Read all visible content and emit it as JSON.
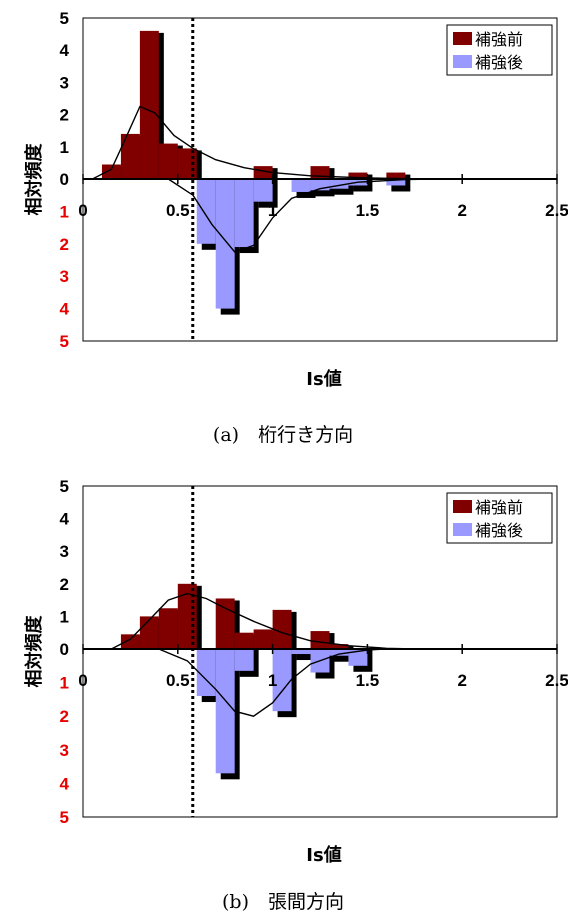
{
  "chart_data": [
    {
      "type": "bar",
      "caption": "(a)　桁行き方向",
      "xlabel": "Is値",
      "ylabel": "相対頻度",
      "xlim": [
        0,
        2.5
      ],
      "ylim": [
        -5,
        5
      ],
      "xticks": [
        "0",
        "0.5",
        "1",
        "1.5",
        "2",
        "2.5"
      ],
      "yticks_pos": [
        "5",
        "4",
        "3",
        "2",
        "1",
        "0"
      ],
      "yticks_neg": [
        "1",
        "2",
        "3",
        "4",
        "5"
      ],
      "bin_width": 0.1,
      "reference_line_x": 0.6,
      "legend_position": "top-right",
      "colors": {
        "before": "#800000",
        "after": "#9999ff",
        "shadow": "#000000"
      },
      "series": [
        {
          "name": "補強前",
          "direction": "up",
          "bins": [
            [
              0.1,
              0.45
            ],
            [
              0.2,
              1.4
            ],
            [
              0.3,
              4.6
            ],
            [
              0.4,
              1.1
            ],
            [
              0.5,
              0.95
            ],
            [
              0.9,
              0.4
            ],
            [
              1.2,
              0.4
            ],
            [
              1.4,
              0.2
            ],
            [
              1.6,
              0.2
            ]
          ]
        },
        {
          "name": "補強後",
          "direction": "down",
          "bins": [
            [
              0.6,
              2.0
            ],
            [
              0.7,
              4.0
            ],
            [
              0.8,
              2.1
            ],
            [
              0.9,
              0.7
            ],
            [
              1.1,
              0.4
            ],
            [
              1.2,
              0.35
            ],
            [
              1.3,
              0.3
            ],
            [
              1.4,
              0.2
            ],
            [
              1.6,
              0.2
            ]
          ]
        }
      ],
      "curves": [
        {
          "direction": "up",
          "points": [
            [
              0.05,
              0
            ],
            [
              0.15,
              0.3
            ],
            [
              0.22,
              1.2
            ],
            [
              0.3,
              2.25
            ],
            [
              0.38,
              2.05
            ],
            [
              0.48,
              1.35
            ],
            [
              0.58,
              0.95
            ],
            [
              0.7,
              0.6
            ],
            [
              0.85,
              0.35
            ],
            [
              1.0,
              0.2
            ],
            [
              1.2,
              0.1
            ],
            [
              1.5,
              0.03
            ],
            [
              1.8,
              0
            ]
          ]
        },
        {
          "direction": "down",
          "points": [
            [
              0.45,
              0
            ],
            [
              0.58,
              0.5
            ],
            [
              0.68,
              1.4
            ],
            [
              0.8,
              2.25
            ],
            [
              0.9,
              2.05
            ],
            [
              1.0,
              1.2
            ],
            [
              1.1,
              0.6
            ],
            [
              1.25,
              0.3
            ],
            [
              1.45,
              0.1
            ],
            [
              1.7,
              0.02
            ],
            [
              1.85,
              0
            ]
          ]
        }
      ]
    },
    {
      "type": "bar",
      "caption": "(b)　張間方向",
      "xlabel": "Is値",
      "ylabel": "相対頻度",
      "xlim": [
        0,
        2.5
      ],
      "ylim": [
        -5,
        5
      ],
      "xticks": [
        "0",
        "0.5",
        "1",
        "1.5",
        "2",
        "2.5"
      ],
      "yticks_pos": [
        "5",
        "4",
        "3",
        "2",
        "1",
        "0"
      ],
      "yticks_neg": [
        "1",
        "2",
        "3",
        "4",
        "5"
      ],
      "bin_width": 0.1,
      "reference_line_x": 0.6,
      "legend_position": "top-right",
      "colors": {
        "before": "#800000",
        "after": "#9999ff",
        "shadow": "#000000"
      },
      "series": [
        {
          "name": "補強前",
          "direction": "up",
          "bins": [
            [
              0.2,
              0.45
            ],
            [
              0.3,
              1.0
            ],
            [
              0.4,
              1.25
            ],
            [
              0.5,
              2.0
            ],
            [
              0.7,
              1.55
            ],
            [
              0.8,
              0.5
            ],
            [
              0.9,
              0.6
            ],
            [
              1.0,
              1.2
            ],
            [
              1.2,
              0.55
            ],
            [
              1.3,
              0.15
            ]
          ]
        },
        {
          "name": "補強後",
          "direction": "down",
          "bins": [
            [
              0.6,
              1.4
            ],
            [
              0.7,
              3.7
            ],
            [
              0.8,
              0.65
            ],
            [
              1.0,
              1.85
            ],
            [
              1.1,
              0.15
            ],
            [
              1.2,
              0.7
            ],
            [
              1.3,
              0.2
            ],
            [
              1.4,
              0.5
            ]
          ]
        }
      ],
      "curves": [
        {
          "direction": "up",
          "points": [
            [
              0.15,
              0
            ],
            [
              0.25,
              0.3
            ],
            [
              0.35,
              0.9
            ],
            [
              0.45,
              1.5
            ],
            [
              0.55,
              1.7
            ],
            [
              0.65,
              1.55
            ],
            [
              0.75,
              1.25
            ],
            [
              0.9,
              0.85
            ],
            [
              1.05,
              0.5
            ],
            [
              1.2,
              0.25
            ],
            [
              1.4,
              0.1
            ],
            [
              1.6,
              0.02
            ],
            [
              1.75,
              0
            ]
          ]
        },
        {
          "direction": "down",
          "points": [
            [
              0.4,
              0
            ],
            [
              0.55,
              0.35
            ],
            [
              0.7,
              1.2
            ],
            [
              0.8,
              1.85
            ],
            [
              0.9,
              2.0
            ],
            [
              1.0,
              1.6
            ],
            [
              1.1,
              0.9
            ],
            [
              1.2,
              0.45
            ],
            [
              1.35,
              0.15
            ],
            [
              1.5,
              0.03
            ],
            [
              1.6,
              0
            ]
          ]
        }
      ]
    }
  ]
}
